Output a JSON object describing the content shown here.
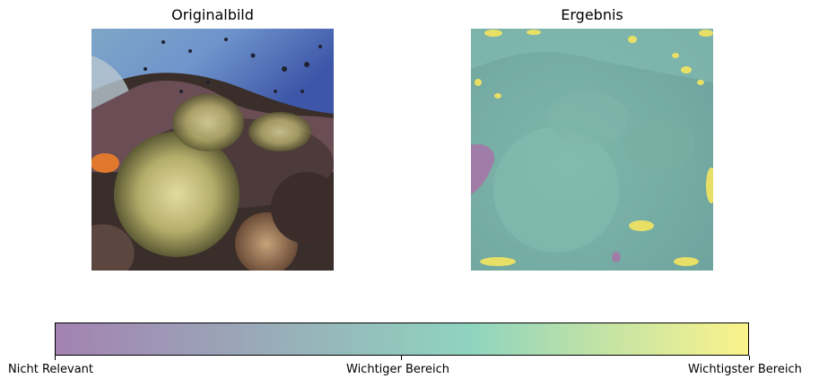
{
  "panels": {
    "left_title": "Originalbild",
    "right_title": "Ergebnis"
  },
  "colorbar": {
    "ticks": [
      "Nicht Relevant",
      "Wichtiger Bereich",
      "Wichtigster Bereich"
    ],
    "colors": [
      "#a382b2",
      "#8fd4bf",
      "#fbf38a"
    ]
  }
}
